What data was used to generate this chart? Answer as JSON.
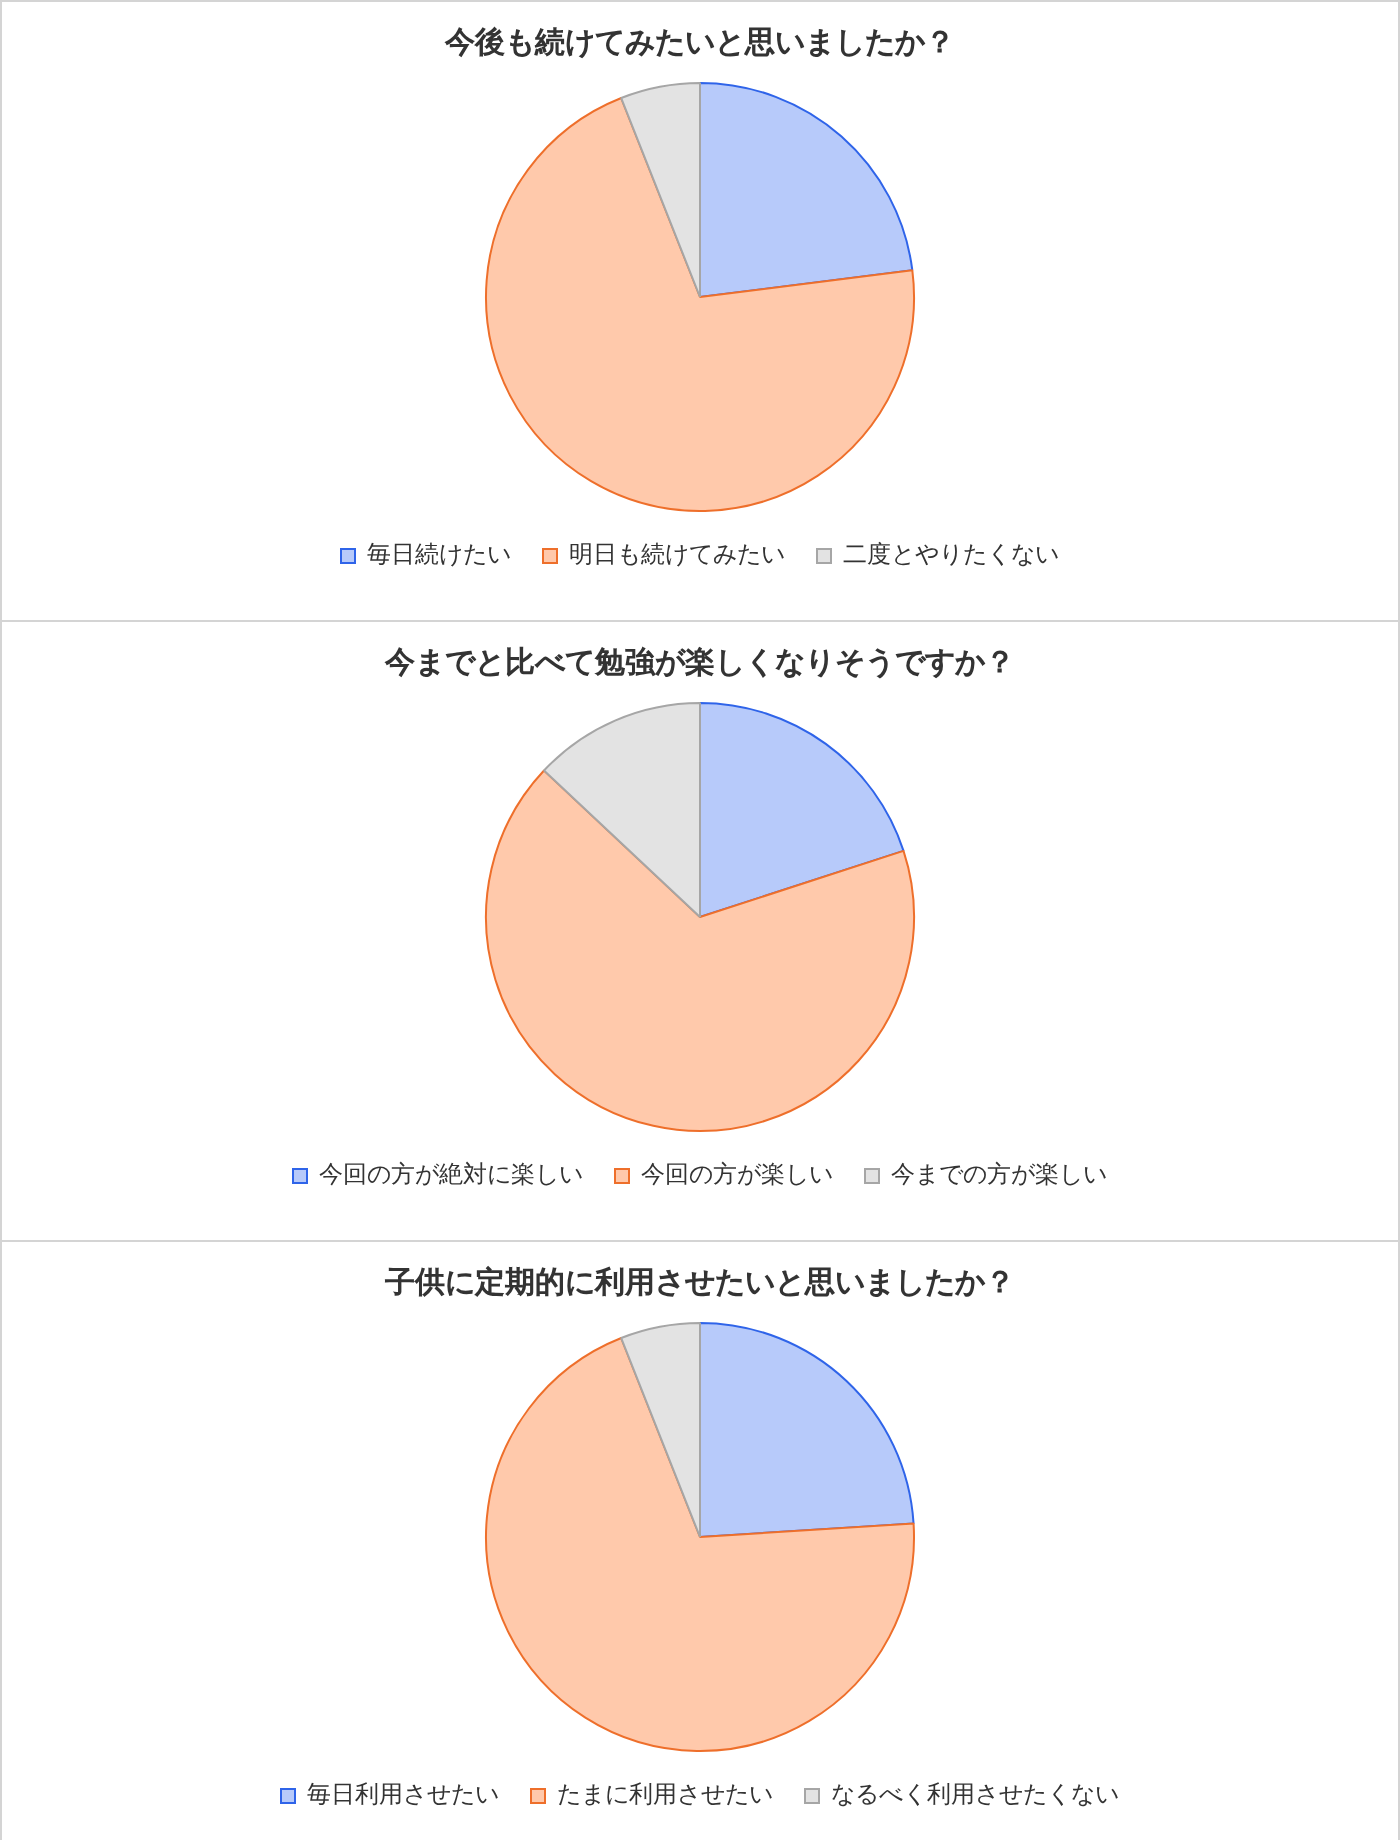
{
  "chart_data": [
    {
      "type": "pie",
      "title": "今後も続けてみたいと思いましたか？",
      "categories": [
        "毎日続けたい",
        "明日も続けてみたい",
        "二度とやりたくない"
      ],
      "values": [
        23,
        71,
        6
      ],
      "colors": [
        "#b7cafa",
        "#ffc9ab",
        "#e3e3e3"
      ],
      "legend": "bottom"
    },
    {
      "type": "pie",
      "title": "今までと比べて勉強が楽しくなりそうですか？",
      "categories": [
        "今回の方が絶対に楽しい",
        "今回の方が楽しい",
        "今までの方が楽しい"
      ],
      "values": [
        20,
        67,
        13
      ],
      "colors": [
        "#b7cafa",
        "#ffc9ab",
        "#e3e3e3"
      ],
      "legend": "bottom"
    },
    {
      "type": "pie",
      "title": "子供に定期的に利用させたいと思いましたか？",
      "categories": [
        "毎日利用させたい",
        "たまに利用させたい",
        "なるべく利用させたくない"
      ],
      "values": [
        24,
        70,
        6
      ],
      "colors": [
        "#b7cafa",
        "#ffc9ab",
        "#e3e3e3"
      ],
      "legend": "bottom"
    }
  ]
}
